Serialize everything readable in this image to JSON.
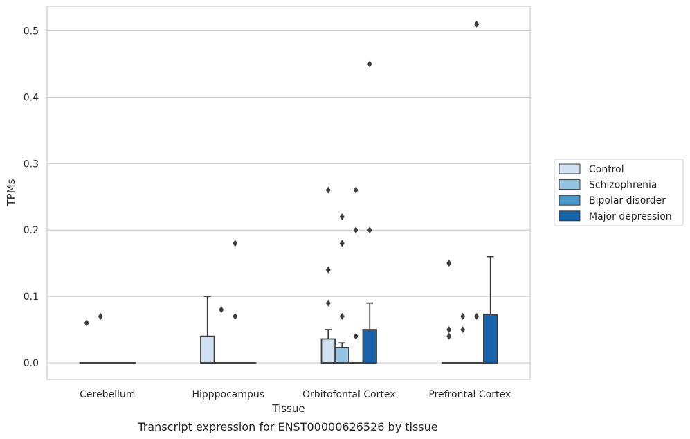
{
  "chart_data": {
    "type": "box",
    "title": "",
    "caption": "Transcript expression for ENST00000626526 by tissue",
    "xlabel": "Tissue",
    "ylabel": "TPMs",
    "ylim": [
      -0.025,
      0.537
    ],
    "yticks": [
      0.0,
      0.1,
      0.2,
      0.3,
      0.4,
      0.5
    ],
    "ytick_labels": [
      "0.0",
      "0.1",
      "0.2",
      "0.3",
      "0.4",
      "0.5"
    ],
    "grid": true,
    "legend_position": "right",
    "categories": [
      "Cerebellum",
      "Hipppocampus",
      "Orbitofontal Cortex",
      "Prefrontal Cortex"
    ],
    "series": [
      {
        "name": "Control",
        "color": "#d0e1f2",
        "boxes": [
          {
            "q1": 0,
            "median": 0,
            "q3": 0,
            "whislo": 0,
            "whishi": 0,
            "fliers": [
              0.06,
              0.06
            ]
          },
          {
            "q1": 0,
            "median": 0,
            "q3": 0.04,
            "whislo": 0,
            "whishi": 0.1,
            "fliers": []
          },
          {
            "q1": 0,
            "median": 0,
            "q3": 0.036,
            "whislo": 0,
            "whishi": 0.05,
            "fliers": [
              0.26,
              0.14,
              0.09
            ]
          },
          {
            "q1": 0,
            "median": 0,
            "q3": 0,
            "whislo": 0,
            "whishi": 0,
            "fliers": [
              0.15,
              0.05,
              0.04
            ]
          }
        ]
      },
      {
        "name": "Schizophrenia",
        "color": "#94c4df",
        "boxes": [
          {
            "q1": 0,
            "median": 0,
            "q3": 0,
            "whislo": 0,
            "whishi": 0,
            "fliers": [
              0.07
            ]
          },
          {
            "q1": 0,
            "median": 0,
            "q3": 0,
            "whislo": 0,
            "whishi": 0,
            "fliers": [
              0.08
            ]
          },
          {
            "q1": 0,
            "median": 0,
            "q3": 0.023,
            "whislo": 0,
            "whishi": 0.03,
            "fliers": [
              0.22,
              0.18,
              0.07
            ]
          },
          {
            "q1": 0,
            "median": 0,
            "q3": 0,
            "whislo": 0,
            "whishi": 0,
            "fliers": [
              0.07,
              0.05
            ]
          }
        ]
      },
      {
        "name": "Bipolar disorder",
        "color": "#4a98c9",
        "boxes": [
          {
            "q1": 0,
            "median": 0,
            "q3": 0,
            "whislo": 0,
            "whishi": 0,
            "fliers": []
          },
          {
            "q1": 0,
            "median": 0,
            "q3": 0,
            "whislo": 0,
            "whishi": 0,
            "fliers": [
              0.18,
              0.07
            ]
          },
          {
            "q1": 0,
            "median": 0,
            "q3": 0,
            "whislo": 0,
            "whishi": 0,
            "fliers": [
              0.26,
              0.2,
              0.04
            ]
          },
          {
            "q1": 0,
            "median": 0,
            "q3": 0,
            "whislo": 0,
            "whishi": 0,
            "fliers": [
              0.51,
              0.07
            ]
          }
        ]
      },
      {
        "name": "Major depression",
        "color": "#1764ab",
        "boxes": [
          {
            "q1": 0,
            "median": 0,
            "q3": 0,
            "whislo": 0,
            "whishi": 0,
            "fliers": []
          },
          {
            "q1": 0,
            "median": 0,
            "q3": 0,
            "whislo": 0,
            "whishi": 0,
            "fliers": []
          },
          {
            "q1": 0,
            "median": 0,
            "q3": 0.05,
            "whislo": 0,
            "whishi": 0.09,
            "fliers": [
              0.45,
              0.2
            ]
          },
          {
            "q1": 0,
            "median": 0,
            "q3": 0.073,
            "whislo": 0,
            "whishi": 0.16,
            "fliers": []
          }
        ]
      }
    ]
  }
}
